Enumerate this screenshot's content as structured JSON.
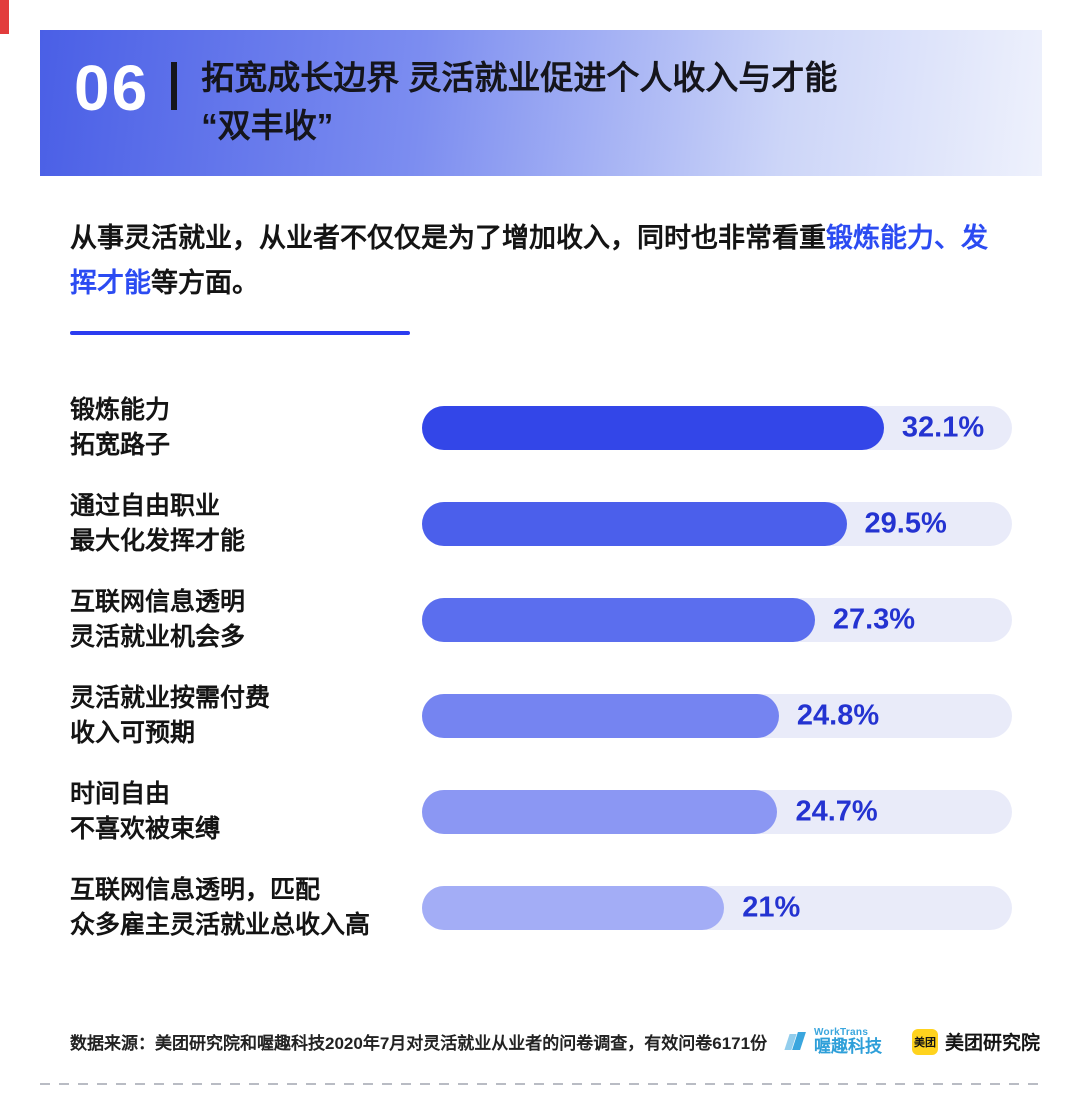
{
  "header": {
    "number": "06",
    "title_line1": "拓宽成长边界 灵活就业促进个人收入与才能",
    "title_line2": "“双丰收”"
  },
  "intro": {
    "text_before": "从事灵活就业，从业者不仅仅是为了增加收入，同时也非常看重",
    "highlight": "锻炼能力、发挥才能",
    "text_after": "等方面。"
  },
  "chart_data": {
    "type": "bar",
    "orientation": "horizontal",
    "categories": [
      "锻炼能力 拓宽路子",
      "通过自由职业 最大化发挥才能",
      "互联网信息透明 灵活就业机会多",
      "灵活就业按需付费 收入可预期",
      "时间自由 不喜欢被束缚",
      "互联网信息透明，匹配 众多雇主灵活就业总收入高"
    ],
    "category_lines": [
      [
        "锻炼能力",
        "拓宽路子"
      ],
      [
        "通过自由职业",
        "最大化发挥才能"
      ],
      [
        "互联网信息透明",
        "灵活就业机会多"
      ],
      [
        "灵活就业按需付费",
        "收入可预期"
      ],
      [
        "时间自由",
        "不喜欢被束缚"
      ],
      [
        "互联网信息透明，匹配",
        "众多雇主灵活就业总收入高"
      ]
    ],
    "values": [
      32.1,
      29.5,
      27.3,
      24.8,
      24.7,
      21
    ],
    "value_labels": [
      "32.1%",
      "29.5%",
      "27.3%",
      "24.8%",
      "24.7%",
      "21%"
    ],
    "xlim": [
      0,
      41
    ],
    "grid": false,
    "legend": false,
    "bar_colors": [
      "#3346e8",
      "#4b5feb",
      "#5b6eee",
      "#7584f1",
      "#8b97f3",
      "#a3adf6"
    ],
    "track_color": "#e9ebf9",
    "value_color": "#2433d1"
  },
  "footer": {
    "source": "数据来源：美团研究院和喔趣科技2020年7月对灵活就业从业者的问卷调查，有效问卷6171份",
    "worktrans_name": "WorkTrans",
    "worktrans_cn": "喔趣科技",
    "meituan_badge": "美团",
    "meituan_text": "美团研究院"
  }
}
